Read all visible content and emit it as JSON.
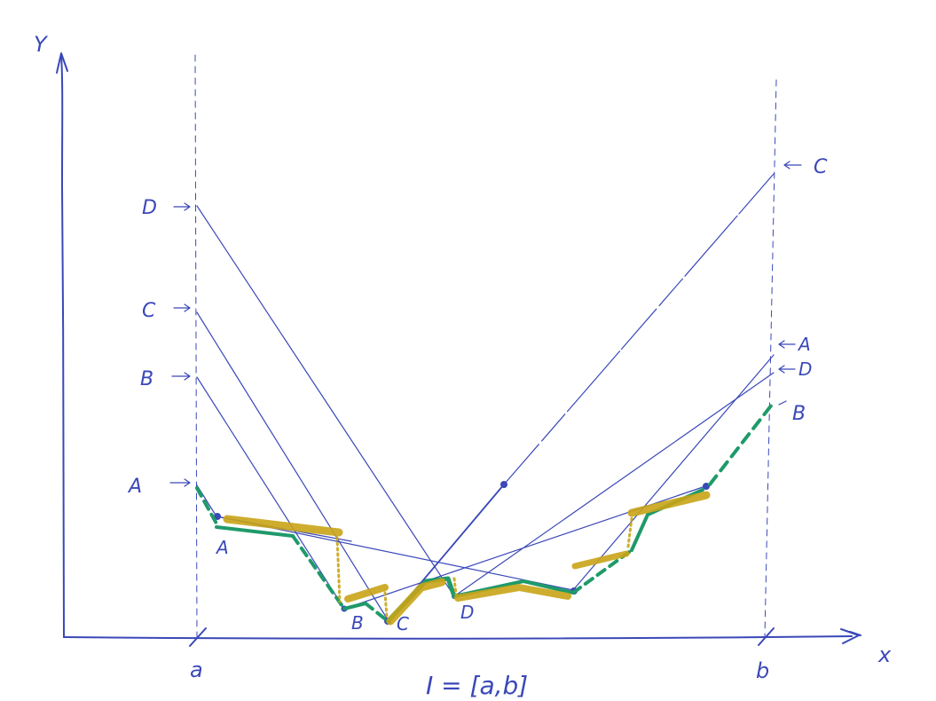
{
  "labels": {
    "y_axis": "Y",
    "x_axis": "x",
    "a": "a",
    "b": "b",
    "interval": "I = [a,b]"
  },
  "left_markers": [
    "D",
    "C",
    "B",
    "A"
  ],
  "right_markers": [
    "C",
    "A",
    "D",
    "B"
  ],
  "vertex_labels": [
    "A",
    "B",
    "C",
    "D"
  ],
  "colors": {
    "ink": "#3a48b8",
    "green_envelope": "#1f9a6a",
    "gold_highlight": "#c9a417"
  }
}
